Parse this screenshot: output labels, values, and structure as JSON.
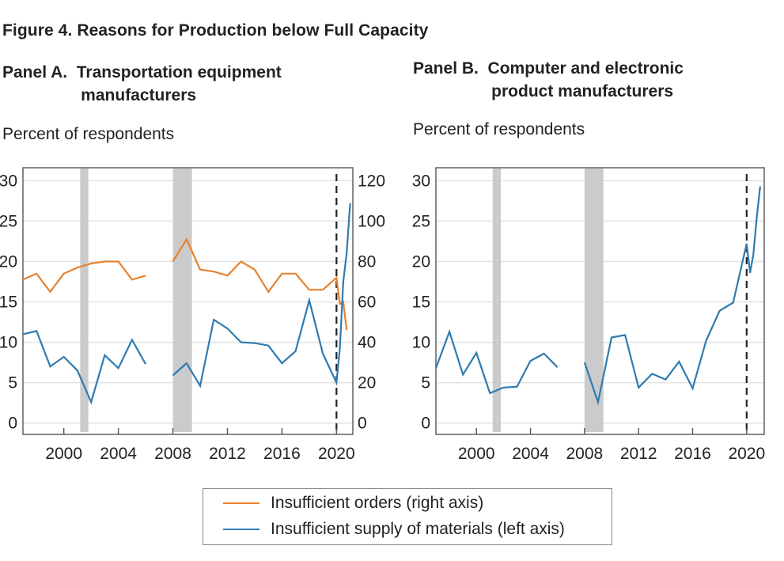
{
  "figure": {
    "title": "Figure 4.    Reasons for Production below Full Capacity"
  },
  "colors": {
    "orders": "#E8812D",
    "materials": "#2E7BB0",
    "recession": "#CBCBCB",
    "grid": "#E2E2E2",
    "axis": "#555555"
  },
  "legend": {
    "orders_label": "Insufficient orders (right axis)",
    "materials_label": "Insufficient supply of materials (left axis)"
  },
  "chart_data": [
    {
      "type": "line",
      "panel": "A",
      "title": "Panel A.  Transportation equipment\n                 manufacturers",
      "ylabel": "Percent of respondents",
      "xlabel": "",
      "xlim": [
        1997,
        2021.2
      ],
      "x_ticks": [
        2000,
        2004,
        2008,
        2012,
        2016,
        2020
      ],
      "ylim_left": [
        -1.4,
        31.6
      ],
      "yticks_left": [
        0,
        5,
        10,
        15,
        20,
        25,
        30
      ],
      "ylim_right": [
        -5.6,
        126.4
      ],
      "yticks_right": [
        0,
        20,
        40,
        60,
        80,
        100,
        120
      ],
      "grid": true,
      "recessions": [
        [
          2001.2,
          2001.8
        ],
        [
          2008.0,
          2009.4
        ]
      ],
      "vline": 2020,
      "series": [
        {
          "name": "Insufficient orders (right axis)",
          "axis": "right",
          "color_key": "orders",
          "segments": [
            {
              "x": [
                1997,
                1998,
                1999,
                2000,
                2001,
                2002,
                2003,
                2004,
                2005,
                2006
              ],
              "y": [
                71,
                74,
                65,
                74,
                77,
                79,
                80,
                80,
                71,
                73
              ]
            },
            {
              "x": [
                2008,
                2009,
                2010,
                2011,
                2012,
                2013,
                2014,
                2015,
                2016,
                2017,
                2018,
                2019,
                2020,
                2020.25,
                2020.5,
                2020.75
              ],
              "y": [
                80,
                91,
                76,
                75,
                73,
                80,
                76,
                65,
                74,
                74,
                66,
                66,
                72,
                59,
                60,
                46
              ]
            }
          ]
        },
        {
          "name": "Insufficient supply of materials (left axis)",
          "axis": "left",
          "color_key": "materials",
          "segments": [
            {
              "x": [
                1997,
                1998,
                1999,
                2000,
                2001,
                2002,
                2003,
                2004,
                2005,
                2006
              ],
              "y": [
                11.0,
                11.4,
                7.0,
                8.2,
                6.5,
                2.6,
                8.4,
                6.8,
                10.3,
                7.3
              ]
            },
            {
              "x": [
                2008,
                2009,
                2010,
                2011,
                2012,
                2013,
                2014,
                2015,
                2016,
                2017,
                2018,
                2019,
                2020,
                2020.25,
                2020.5,
                2020.75,
                2021
              ],
              "y": [
                5.9,
                7.4,
                4.6,
                12.8,
                11.7,
                10.0,
                9.9,
                9.6,
                7.4,
                8.9,
                15.2,
                8.6,
                5.0,
                9.3,
                17.5,
                21.0,
                27.2
              ]
            }
          ]
        }
      ]
    },
    {
      "type": "line",
      "panel": "B",
      "title": "Panel B.  Computer and electronic\n                 product manufacturers",
      "ylabel": "Percent of respondents",
      "xlabel": "",
      "xlim": [
        1997,
        2021.3
      ],
      "x_ticks": [
        2000,
        2004,
        2008,
        2012,
        2016,
        2020
      ],
      "ylim_left": [
        -1.4,
        31.6
      ],
      "yticks_left": [
        0,
        5,
        10,
        15,
        20,
        25,
        30
      ],
      "grid": true,
      "recessions": [
        [
          2001.2,
          2001.8
        ],
        [
          2008.0,
          2009.4
        ]
      ],
      "vline": 2020,
      "series": [
        {
          "name": "Insufficient supply of materials (left axis)",
          "axis": "left",
          "color_key": "materials",
          "segments": [
            {
              "x": [
                1997,
                1998,
                1999,
                2000,
                2001,
                2002,
                2003,
                2004,
                2005,
                2006
              ],
              "y": [
                6.8,
                11.3,
                6.0,
                8.7,
                3.7,
                4.4,
                4.5,
                7.7,
                8.6,
                6.9
              ]
            },
            {
              "x": [
                2008,
                2009,
                2010,
                2011,
                2012,
                2013,
                2014,
                2015,
                2016,
                2017,
                2018,
                2019,
                2020,
                2020.25,
                2020.5,
                2020.75,
                2021
              ],
              "y": [
                7.5,
                2.6,
                10.6,
                10.9,
                4.4,
                6.1,
                5.4,
                7.6,
                4.3,
                10.2,
                13.9,
                14.9,
                22.2,
                18.6,
                20.9,
                25.5,
                29.3
              ]
            }
          ]
        }
      ]
    }
  ]
}
